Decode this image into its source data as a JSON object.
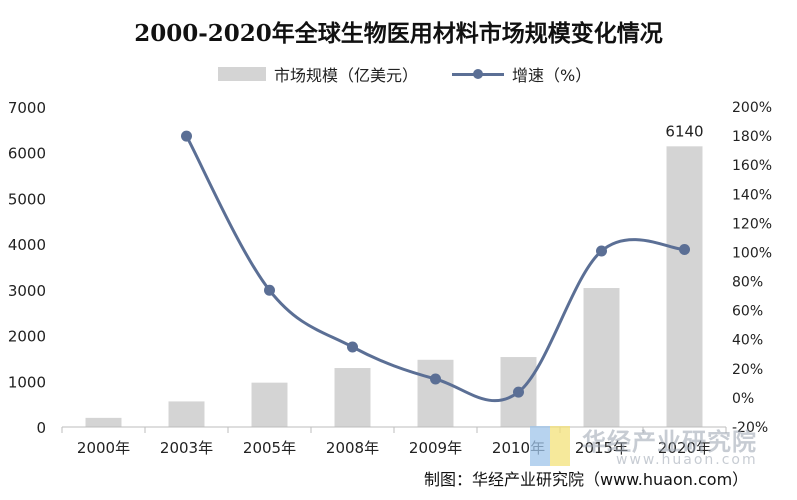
{
  "chart_data": {
    "type": "bar",
    "title": "2000-2020年全球生物医用材料市场规模变化情况",
    "categories": [
      "2000年",
      "2003年",
      "2005年",
      "2008年",
      "2009年",
      "2010年",
      "2015年",
      "2020年"
    ],
    "series": [
      {
        "name": "市场规模（亿美元）",
        "type": "bar",
        "axis": "left",
        "color": "#d4d4d4",
        "values": [
          200,
          560,
          970,
          1290,
          1470,
          1530,
          3040,
          6140
        ],
        "data_labels": [
          "",
          "",
          "",
          "",
          "",
          "",
          "",
          "6140"
        ]
      },
      {
        "name": "增速（%）",
        "type": "line",
        "axis": "right",
        "color": "#5b6f95",
        "values": [
          null,
          180,
          74,
          35,
          13,
          4,
          101,
          102
        ]
      }
    ],
    "y_left": {
      "min": 0,
      "max": 7000,
      "ticks": [
        "0",
        "1000",
        "2000",
        "3000",
        "4000",
        "5000",
        "6000",
        "7000"
      ]
    },
    "y_right": {
      "min": -20,
      "max": 200,
      "ticks": [
        "-20%",
        "0%",
        "20%",
        "40%",
        "60%",
        "80%",
        "100%",
        "120%",
        "140%",
        "160%",
        "180%",
        "200%"
      ]
    },
    "grid": false,
    "legend_position": "top"
  },
  "watermark": {
    "cn": "华经产业研究院",
    "en": "www.huaon.com"
  },
  "source": "制图：华经产业研究院（www.huaon.com）"
}
